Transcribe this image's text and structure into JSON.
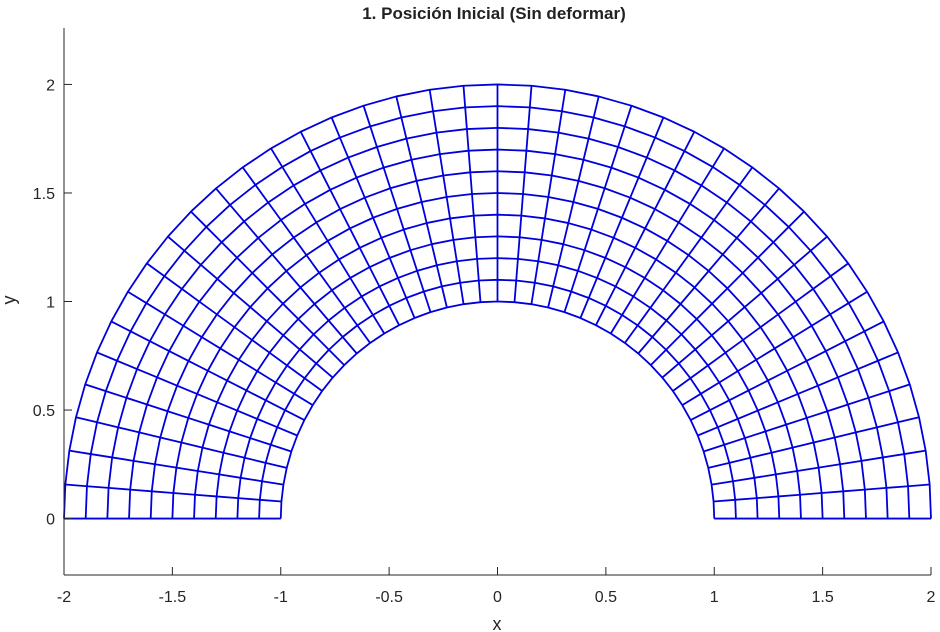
{
  "chart_data": {
    "type": "line",
    "title": "1. Posición Inicial (Sin deformar)",
    "xlabel": "x",
    "ylabel": "y",
    "xlim": [
      -2,
      2
    ],
    "ylim": [
      -0.26,
      2.26
    ],
    "xticks": [
      -2,
      -1.5,
      -1,
      -0.5,
      0,
      0.5,
      1,
      1.5,
      2
    ],
    "xtick_labels": [
      "-2",
      "-1.5",
      "-1",
      "-0.5",
      "0",
      "0.5",
      "1",
      "1.5",
      "2"
    ],
    "yticks": [
      0,
      0.5,
      1,
      1.5,
      2
    ],
    "ytick_labels": [
      "0",
      "0.5",
      "1",
      "1.5",
      "2"
    ],
    "grid": false,
    "series": [
      {
        "mesh": "annular-sector",
        "inner_radius": 1,
        "outer_radius": 2,
        "angle_start_deg": 0,
        "angle_end_deg": 180,
        "radial_divisions": 10,
        "angular_divisions": 40,
        "color": "#0000dd"
      }
    ]
  }
}
